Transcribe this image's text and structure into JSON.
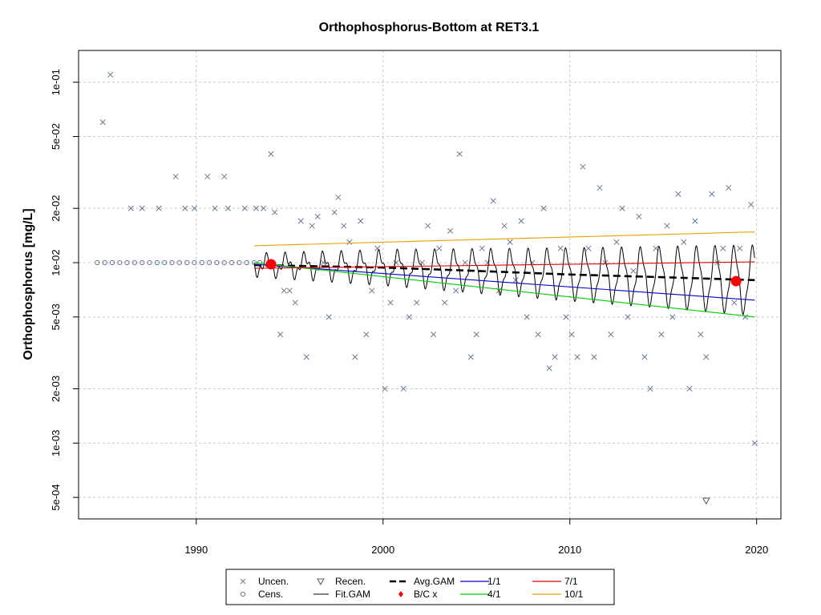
{
  "chart_data": {
    "type": "scatter",
    "title": "Orthophosphorus-Bottom at RET3.1",
    "xlabel": "",
    "ylabel": "Orthophosphorus [mg/L]",
    "y_scale": "log",
    "xlim": [
      1983.7,
      2021.3
    ],
    "ylim": [
      0.00038,
      0.15
    ],
    "grid": true,
    "x_ticks": [
      {
        "value": 1990,
        "label": "1990"
      },
      {
        "value": 2000,
        "label": "2000"
      },
      {
        "value": 2010,
        "label": "2010"
      },
      {
        "value": 2020,
        "label": "2020"
      }
    ],
    "y_ticks": [
      {
        "value": 0.0005,
        "label": "5e-04"
      },
      {
        "value": 0.001,
        "label": "1e-03"
      },
      {
        "value": 0.002,
        "label": "2e-03"
      },
      {
        "value": 0.005,
        "label": "5e-03"
      },
      {
        "value": 0.01,
        "label": "1e-02"
      },
      {
        "value": 0.02,
        "label": "2e-02"
      },
      {
        "value": 0.05,
        "label": "5e-02"
      },
      {
        "value": 0.1,
        "label": "1e-01"
      }
    ],
    "uncensored_points": [
      [
        1985.0,
        0.06
      ],
      [
        1985.4,
        0.11
      ],
      [
        1986.5,
        0.02
      ],
      [
        1987.1,
        0.02
      ],
      [
        1988.0,
        0.02
      ],
      [
        1988.9,
        0.03
      ],
      [
        1989.4,
        0.02
      ],
      [
        1989.9,
        0.02
      ],
      [
        1990.6,
        0.03
      ],
      [
        1991.0,
        0.02
      ],
      [
        1991.5,
        0.03
      ],
      [
        1991.7,
        0.02
      ],
      [
        1992.6,
        0.02
      ],
      [
        1993.2,
        0.02
      ],
      [
        1993.6,
        0.02
      ],
      [
        1994.0,
        0.04
      ],
      [
        1994.2,
        0.019
      ],
      [
        1994.5,
        0.004
      ],
      [
        1994.7,
        0.007
      ],
      [
        1995.0,
        0.007
      ],
      [
        1995.3,
        0.006
      ],
      [
        1995.6,
        0.017
      ],
      [
        1995.9,
        0.003
      ],
      [
        1996.2,
        0.016
      ],
      [
        1996.5,
        0.018
      ],
      [
        1996.8,
        0.01
      ],
      [
        1997.1,
        0.005
      ],
      [
        1997.4,
        0.019
      ],
      [
        1997.6,
        0.023
      ],
      [
        1997.9,
        0.016
      ],
      [
        1998.2,
        0.013
      ],
      [
        1998.5,
        0.003
      ],
      [
        1998.8,
        0.017
      ],
      [
        1999.1,
        0.004
      ],
      [
        1999.4,
        0.007
      ],
      [
        1999.7,
        0.012
      ],
      [
        2000.1,
        0.002
      ],
      [
        2000.4,
        0.006
      ],
      [
        2000.7,
        0.01
      ],
      [
        2001.1,
        0.002
      ],
      [
        2001.4,
        0.005
      ],
      [
        2001.8,
        0.006
      ],
      [
        2002.1,
        0.01
      ],
      [
        2002.4,
        0.016
      ],
      [
        2002.7,
        0.004
      ],
      [
        2003.0,
        0.012
      ],
      [
        2003.3,
        0.006
      ],
      [
        2003.6,
        0.015
      ],
      [
        2003.9,
        0.007
      ],
      [
        2004.1,
        0.04
      ],
      [
        2004.4,
        0.01
      ],
      [
        2004.7,
        0.003
      ],
      [
        2005.0,
        0.004
      ],
      [
        2005.3,
        0.012
      ],
      [
        2005.6,
        0.01
      ],
      [
        2005.9,
        0.022
      ],
      [
        2006.2,
        0.007
      ],
      [
        2006.5,
        0.016
      ],
      [
        2006.8,
        0.013
      ],
      [
        2007.1,
        0.008
      ],
      [
        2007.4,
        0.017
      ],
      [
        2007.7,
        0.005
      ],
      [
        2008.0,
        0.01
      ],
      [
        2008.3,
        0.004
      ],
      [
        2008.6,
        0.02
      ],
      [
        2008.9,
        0.0026
      ],
      [
        2009.2,
        0.003
      ],
      [
        2009.5,
        0.012
      ],
      [
        2009.8,
        0.005
      ],
      [
        2010.1,
        0.004
      ],
      [
        2010.4,
        0.003
      ],
      [
        2010.7,
        0.034
      ],
      [
        2011.0,
        0.012
      ],
      [
        2011.3,
        0.003
      ],
      [
        2011.6,
        0.026
      ],
      [
        2011.9,
        0.01
      ],
      [
        2012.2,
        0.004
      ],
      [
        2012.5,
        0.013
      ],
      [
        2012.8,
        0.02
      ],
      [
        2013.1,
        0.005
      ],
      [
        2013.4,
        0.009
      ],
      [
        2013.7,
        0.018
      ],
      [
        2014.0,
        0.003
      ],
      [
        2014.3,
        0.002
      ],
      [
        2014.6,
        0.012
      ],
      [
        2014.9,
        0.004
      ],
      [
        2015.2,
        0.016
      ],
      [
        2015.5,
        0.005
      ],
      [
        2015.8,
        0.024
      ],
      [
        2016.1,
        0.013
      ],
      [
        2016.4,
        0.002
      ],
      [
        2016.7,
        0.017
      ],
      [
        2017.0,
        0.004
      ],
      [
        2017.3,
        0.003
      ],
      [
        2017.6,
        0.024
      ],
      [
        2017.9,
        0.01
      ],
      [
        2018.2,
        0.012
      ],
      [
        2018.5,
        0.026
      ],
      [
        2018.8,
        0.006
      ],
      [
        2019.1,
        0.012
      ],
      [
        2019.4,
        0.005
      ],
      [
        2019.7,
        0.021
      ],
      [
        2019.9,
        0.001
      ]
    ],
    "censored_points": [
      [
        1984.7,
        0.01
      ],
      [
        1985.1,
        0.01
      ],
      [
        1985.5,
        0.01
      ],
      [
        1985.9,
        0.01
      ],
      [
        1986.3,
        0.01
      ],
      [
        1986.7,
        0.01
      ],
      [
        1987.1,
        0.01
      ],
      [
        1987.5,
        0.01
      ],
      [
        1987.9,
        0.01
      ],
      [
        1988.3,
        0.01
      ],
      [
        1988.7,
        0.01
      ],
      [
        1989.1,
        0.01
      ],
      [
        1989.5,
        0.01
      ],
      [
        1989.9,
        0.01
      ],
      [
        1990.3,
        0.01
      ],
      [
        1990.7,
        0.01
      ],
      [
        1991.1,
        0.01
      ],
      [
        1991.5,
        0.01
      ],
      [
        1991.9,
        0.01
      ],
      [
        1992.3,
        0.01
      ],
      [
        1992.7,
        0.01
      ],
      [
        1993.1,
        0.01
      ],
      [
        1993.4,
        0.01
      ]
    ],
    "recensored_points": [
      [
        2017.3,
        0.00048
      ]
    ],
    "fit_gam": {
      "start": 1993.1,
      "end": 2019.9,
      "description": "seasonal fitted GAM oscillating about the annual average"
    },
    "series": [
      {
        "name": "Avg.GAM",
        "color": "#000000",
        "style": "dashed",
        "x": [
          1993.1,
          2000,
          2005,
          2010,
          2015,
          2019.9
        ],
        "y": [
          0.0097,
          0.0094,
          0.009,
          0.0086,
          0.0083,
          0.008
        ]
      },
      {
        "name": "1/1",
        "color": "#0000CD",
        "style": "solid",
        "x": [
          1993.1,
          2019.9
        ],
        "y": [
          0.0098,
          0.0062
        ]
      },
      {
        "name": "4/1",
        "color": "#00CD00",
        "style": "solid",
        "x": [
          1993.1,
          2019.9
        ],
        "y": [
          0.01,
          0.005
        ]
      },
      {
        "name": "7/1",
        "color": "#E00000",
        "style": "solid",
        "x": [
          1993.1,
          2019.9
        ],
        "y": [
          0.0093,
          0.0101
        ]
      },
      {
        "name": "10/1",
        "color": "#E8A000",
        "style": "solid",
        "x": [
          1993.1,
          2019.9
        ],
        "y": [
          0.0124,
          0.0148
        ]
      }
    ],
    "bc_points": [
      [
        1994.0,
        0.0098
      ],
      [
        2018.9,
        0.0079
      ]
    ],
    "legend": {
      "placement": "bottom",
      "entries": [
        {
          "label": "Uncen.",
          "symbol": "x"
        },
        {
          "label": "Cens.",
          "symbol": "o"
        },
        {
          "label": "Recen.",
          "symbol": "triangle-down"
        },
        {
          "label": "Fit.GAM",
          "symbol": "line"
        },
        {
          "label": "Avg.GAM",
          "symbol": "dashed-line"
        },
        {
          "label": "B/C x",
          "symbol": "red-diamond"
        },
        {
          "label": "1/1",
          "symbol": "blue-line"
        },
        {
          "label": "4/1",
          "symbol": "green-line"
        },
        {
          "label": "7/1",
          "symbol": "red-line"
        },
        {
          "label": "10/1",
          "symbol": "orange-line"
        }
      ]
    }
  }
}
